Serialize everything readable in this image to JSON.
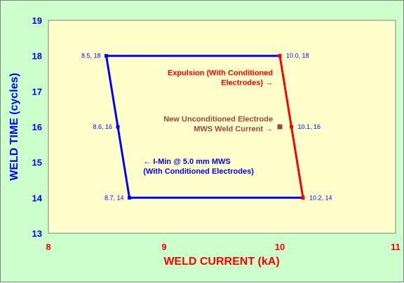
{
  "chart_data": {
    "type": "line",
    "xlabel": "WELD CURRENT (kA)",
    "ylabel": "WELD TIME (cycles)",
    "xlim": [
      8,
      11
    ],
    "ylim": [
      13,
      19
    ],
    "x_ticks": [
      "8",
      "9",
      "10",
      "11"
    ],
    "y_ticks": [
      "13",
      "14",
      "15",
      "16",
      "17",
      "18",
      "19"
    ],
    "grid": false,
    "colors": {
      "plot_bg": "#ffffcc",
      "frame_bg": "#ccffcc",
      "blue": "#0000ff",
      "red": "#ff0000",
      "brown": "#a0463c",
      "axis_x_text": "#ff0000",
      "axis_y_text": "#0000ff"
    },
    "series": [
      {
        "color": "#0000ff",
        "points": [
          {
            "x": 10.2,
            "y": 14
          },
          {
            "x": 8.7,
            "y": 14
          },
          {
            "x": 8.6,
            "y": 16
          },
          {
            "x": 8.5,
            "y": 18
          },
          {
            "x": 10.0,
            "y": 18
          }
        ]
      },
      {
        "color": "#ff0000",
        "points": [
          {
            "x": 10.0,
            "y": 18
          },
          {
            "x": 10.1,
            "y": 16
          },
          {
            "x": 10.2,
            "y": 14
          }
        ]
      },
      {
        "color": "#a0463c",
        "points": [
          {
            "x": 10.0,
            "y": 16
          }
        ]
      }
    ],
    "point_labels": [
      {
        "x": 8.5,
        "y": 18,
        "text": "8.5, 18",
        "color": "#0000ff",
        "side": "left"
      },
      {
        "x": 8.6,
        "y": 16,
        "text": "8.6, 16",
        "color": "#0000ff",
        "side": "left"
      },
      {
        "x": 8.7,
        "y": 14,
        "text": "8.7, 14",
        "color": "#0000ff",
        "side": "left"
      },
      {
        "x": 10.0,
        "y": 18,
        "text": "10.0, 18",
        "color": "#0000ff",
        "side": "right"
      },
      {
        "x": 10.1,
        "y": 16,
        "text": "10.1, 16",
        "color": "#0000ff",
        "side": "right"
      },
      {
        "x": 10.2,
        "y": 14,
        "text": "10.2, 14",
        "color": "#0000ff",
        "side": "right"
      }
    ],
    "annotations": [
      {
        "lines": [
          "Expulsion (With Conditioned",
          "Electrodes) →"
        ],
        "color": "#ff0000",
        "anchor": "end",
        "x": 9.94,
        "y": 17.45
      },
      {
        "lines": [
          "New Unconditioned Electrode",
          "MWS Weld Current →"
        ],
        "color": "#a0463c",
        "anchor": "end",
        "x": 9.94,
        "y": 16.15
      },
      {
        "lines": [
          "←  I-Min @ 5.0 mm MWS",
          "(With Conditioned Electrodes)"
        ],
        "color": "#0000ff",
        "anchor": "start",
        "x": 8.82,
        "y": 14.95
      }
    ]
  }
}
